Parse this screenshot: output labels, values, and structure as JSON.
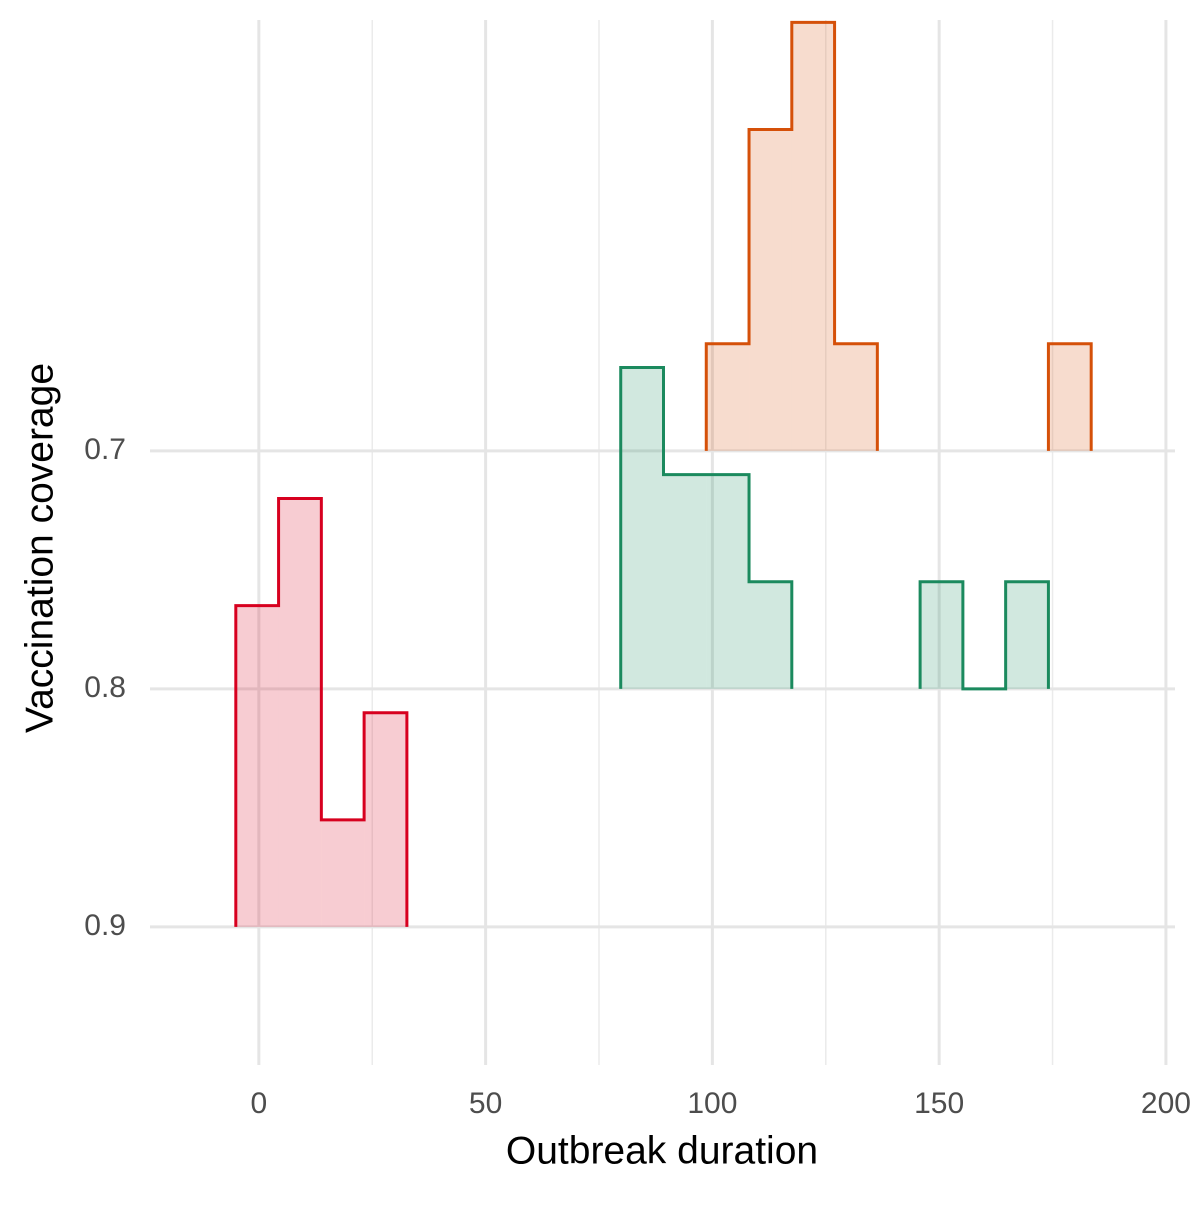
{
  "chart_data": {
    "type": "ridgeline_histogram",
    "x_label": "Outbreak duration",
    "y_label": "Vaccination coverage",
    "xlim": [
      -24,
      202
    ],
    "xticks": [
      0,
      50,
      100,
      150,
      200
    ],
    "x_minor_ticks": [
      25,
      75,
      125,
      175
    ],
    "ylim": [
      0.958,
      0.519
    ],
    "yticks": [
      0.7,
      0.8,
      0.9
    ],
    "grid": true,
    "series": [
      {
        "y": 0.9,
        "color": "#d7001f",
        "bins": [
          -5.08,
          4.35,
          13.78,
          23.21,
          32.64
        ],
        "values": [
          0.135,
          0.18,
          0.045,
          0.09
        ]
      },
      {
        "y": 0.8,
        "color": "#1b8a5e",
        "bins": [
          79.79,
          89.22,
          98.65,
          108.08,
          117.51,
          126.94,
          136.37,
          145.8,
          155.23,
          164.66,
          174.09
        ],
        "values": [
          0.135,
          0.09,
          0.09,
          0.045,
          null,
          null,
          null,
          0.045,
          0,
          0.045
        ]
      },
      {
        "y": 0.7,
        "color": "#d55009",
        "bins": [
          98.65,
          108.08,
          117.51,
          126.94,
          136.37,
          145.8,
          155.23,
          164.66,
          174.09,
          183.52
        ],
        "values": [
          0.045,
          0.135,
          0.18,
          0.045,
          null,
          null,
          null,
          null,
          0.045
        ]
      }
    ]
  }
}
